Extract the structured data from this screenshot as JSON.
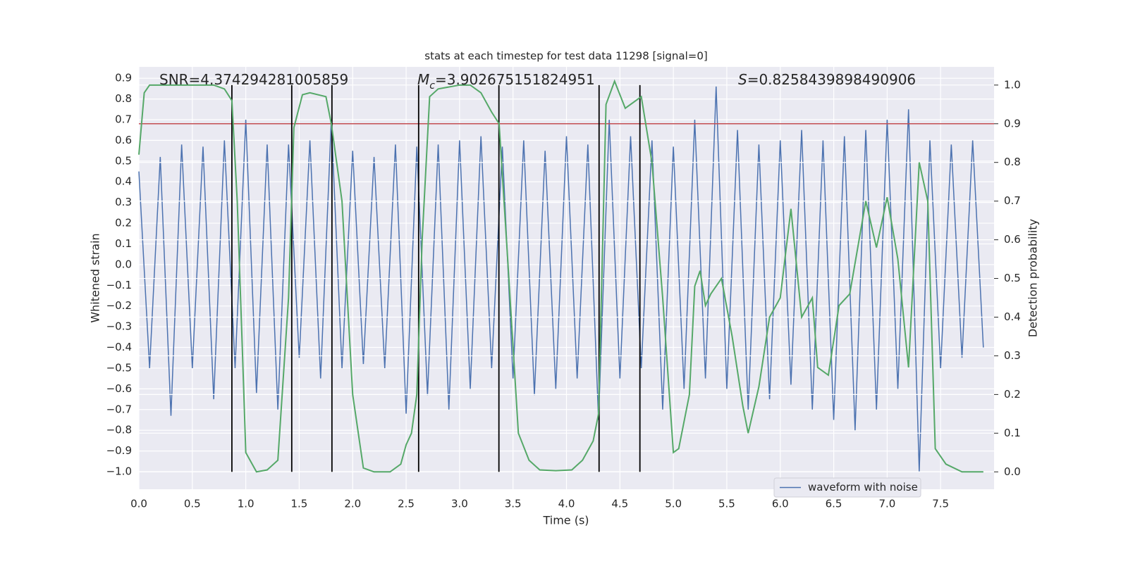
{
  "chart_data": {
    "type": "line",
    "title": "stats at each timestep for test data 11298 [signal=0]",
    "xlabel": "Time (s)",
    "ylabel": "Whitened strain",
    "y2label": "Detection probability",
    "annotations": [
      {
        "text": "SNR=4.374294281005859"
      },
      {
        "symbol": "M",
        "subscript": "c",
        "text": "=3.902675151824951"
      },
      {
        "symbol": "S",
        "text": "=0.8258439898490906"
      }
    ],
    "xlim": [
      0,
      8.0
    ],
    "ylim": [
      -1.085,
      0.955
    ],
    "y2lim": [
      -0.045,
      1.047
    ],
    "xticks": [
      {
        "value": 0,
        "label": "0.0"
      },
      {
        "value": 0.5,
        "label": "0.5"
      },
      {
        "value": 1,
        "label": "1.0"
      },
      {
        "value": 1.5,
        "label": "1.5"
      },
      {
        "value": 2,
        "label": "2.0"
      },
      {
        "value": 2.5,
        "label": "2.5"
      },
      {
        "value": 3,
        "label": "3.0"
      },
      {
        "value": 3.5,
        "label": "3.5"
      },
      {
        "value": 4,
        "label": "4.0"
      },
      {
        "value": 4.5,
        "label": "4.5"
      },
      {
        "value": 5,
        "label": "5.0"
      },
      {
        "value": 5.5,
        "label": "5.5"
      },
      {
        "value": 6,
        "label": "6.0"
      },
      {
        "value": 6.5,
        "label": "6.5"
      },
      {
        "value": 7,
        "label": "7.0"
      },
      {
        "value": 7.5,
        "label": "7.5"
      }
    ],
    "yticks": [
      {
        "value": -1,
        "label": "−1.0"
      },
      {
        "value": -0.9,
        "label": "−0.9"
      },
      {
        "value": -0.8,
        "label": "−0.8"
      },
      {
        "value": -0.7,
        "label": "−0.7"
      },
      {
        "value": -0.6,
        "label": "−0.6"
      },
      {
        "value": -0.5,
        "label": "−0.5"
      },
      {
        "value": -0.4,
        "label": "−0.4"
      },
      {
        "value": -0.3,
        "label": "−0.3"
      },
      {
        "value": -0.2,
        "label": "−0.2"
      },
      {
        "value": -0.1,
        "label": "−0.1"
      },
      {
        "value": 0,
        "label": "0.0"
      },
      {
        "value": 0.1,
        "label": "0.1"
      },
      {
        "value": 0.2,
        "label": "0.2"
      },
      {
        "value": 0.3,
        "label": "0.3"
      },
      {
        "value": 0.4,
        "label": "0.4"
      },
      {
        "value": 0.5,
        "label": "0.5"
      },
      {
        "value": 0.6,
        "label": "0.6"
      },
      {
        "value": 0.7,
        "label": "0.7"
      },
      {
        "value": 0.8,
        "label": "0.8"
      },
      {
        "value": 0.9,
        "label": "0.9"
      }
    ],
    "y2ticks": [
      {
        "value": 0,
        "label": "0.0"
      },
      {
        "value": 0.1,
        "label": "0.1"
      },
      {
        "value": 0.2,
        "label": "0.2"
      },
      {
        "value": 0.3,
        "label": "0.3"
      },
      {
        "value": 0.4,
        "label": "0.4"
      },
      {
        "value": 0.5,
        "label": "0.5"
      },
      {
        "value": 0.6,
        "label": "0.6"
      },
      {
        "value": 0.7,
        "label": "0.7"
      },
      {
        "value": 0.8,
        "label": "0.8"
      },
      {
        "value": 0.9,
        "label": "0.9"
      },
      {
        "value": 1,
        "label": "1.0"
      }
    ],
    "grid": true,
    "legend": "lower right",
    "series": [
      {
        "name": "waveform with noise",
        "color": "#4c72b0",
        "x": [
          0,
          0.1,
          0.2,
          0.3,
          0.4,
          0.5,
          0.6,
          0.7,
          0.8,
          0.9,
          1,
          1.1,
          1.2,
          1.3,
          1.4,
          1.5,
          1.6,
          1.7,
          1.8,
          1.9,
          2,
          2.1,
          2.2,
          2.3,
          2.4,
          2.5,
          2.6,
          2.7,
          2.8,
          2.9,
          3,
          3.1,
          3.2,
          3.3,
          3.4,
          3.5,
          3.6,
          3.7,
          3.8,
          3.9,
          4,
          4.1,
          4.2,
          4.3,
          4.4,
          4.5,
          4.6,
          4.7,
          4.8,
          4.9,
          5,
          5.1,
          5.2,
          5.3,
          5.4,
          5.5,
          5.6,
          5.7,
          5.8,
          5.9,
          6,
          6.1,
          6.2,
          6.3,
          6.4,
          6.5,
          6.6,
          6.7,
          6.8,
          6.9,
          7,
          7.1,
          7.2,
          7.3,
          7.4,
          7.5,
          7.6,
          7.7,
          7.8,
          7.9
        ],
        "values": [
          0.45,
          -0.5,
          0.52,
          -0.73,
          0.58,
          -0.5,
          0.57,
          -0.65,
          0.6,
          -0.5,
          0.7,
          -0.62,
          0.58,
          -0.7,
          0.58,
          -0.45,
          0.6,
          -0.55,
          0.7,
          -0.5,
          0.55,
          -0.48,
          0.52,
          -0.5,
          0.58,
          -0.72,
          0.57,
          -0.63,
          0.58,
          -0.7,
          0.6,
          -0.6,
          0.62,
          -0.5,
          0.57,
          -0.55,
          0.6,
          -0.63,
          0.55,
          -0.6,
          0.62,
          -0.55,
          0.58,
          -0.75,
          0.7,
          -0.55,
          0.62,
          -0.5,
          0.6,
          -0.7,
          0.57,
          -0.6,
          0.7,
          -0.55,
          0.86,
          -0.6,
          0.65,
          -0.7,
          0.58,
          -0.65,
          0.6,
          -0.58,
          0.65,
          -0.7,
          0.6,
          -0.75,
          0.62,
          -0.8,
          0.65,
          -0.7,
          0.7,
          -0.6,
          0.75,
          -1.0,
          0.6,
          -0.5,
          0.58,
          -0.45,
          0.6,
          -0.4
        ]
      }
    ],
    "probability": {
      "color": "#55a868",
      "axis": "y2",
      "x": [
        0,
        0.05,
        0.1,
        0.7,
        0.8,
        0.87,
        0.92,
        0.97,
        1,
        1.1,
        1.2,
        1.3,
        1.4,
        1.45,
        1.53,
        1.6,
        1.75,
        1.8,
        1.9,
        2,
        2.1,
        2.2,
        2.35,
        2.45,
        2.5,
        2.55,
        2.6,
        2.65,
        2.72,
        2.8,
        3,
        3.1,
        3.2,
        3.3,
        3.37,
        3.45,
        3.55,
        3.65,
        3.75,
        3.9,
        4.05,
        4.15,
        4.25,
        4.3,
        4.37,
        4.45,
        4.55,
        4.7,
        4.8,
        4.9,
        5,
        5.05,
        5.15,
        5.2,
        5.25,
        5.3,
        5.35,
        5.45,
        5.55,
        5.65,
        5.7,
        5.8,
        5.9,
        6,
        6.1,
        6.2,
        6.3,
        6.35,
        6.45,
        6.55,
        6.65,
        6.8,
        6.9,
        7,
        7.1,
        7.2,
        7.3,
        7.38,
        7.45,
        7.55,
        7.7,
        7.9
      ],
      "values": [
        0.82,
        0.98,
        1,
        1,
        0.99,
        0.96,
        0.7,
        0.3,
        0.05,
        0,
        0.005,
        0.03,
        0.45,
        0.89,
        0.975,
        0.98,
        0.97,
        0.9,
        0.7,
        0.2,
        0.01,
        0,
        0,
        0.02,
        0.07,
        0.1,
        0.2,
        0.6,
        0.97,
        0.99,
        1,
        1,
        0.98,
        0.93,
        0.9,
        0.55,
        0.1,
        0.03,
        0.005,
        0.003,
        0.005,
        0.03,
        0.08,
        0.15,
        0.95,
        1.01,
        0.94,
        0.97,
        0.8,
        0.45,
        0.05,
        0.06,
        0.2,
        0.48,
        0.52,
        0.43,
        0.46,
        0.5,
        0.35,
        0.17,
        0.1,
        0.22,
        0.4,
        0.45,
        0.68,
        0.4,
        0.45,
        0.27,
        0.25,
        0.43,
        0.46,
        0.7,
        0.58,
        0.71,
        0.55,
        0.27,
        0.8,
        0.7,
        0.06,
        0.02,
        0,
        0
      ]
    },
    "threshold": {
      "color": "#c44e52",
      "axis": "y2",
      "y": 0.9
    },
    "vlines": {
      "color": "#000000",
      "x": [
        0.87,
        1.43,
        1.806,
        2.617,
        3.368,
        4.305,
        4.687
      ],
      "ymin": 0,
      "ymax": 1,
      "axis": "y2"
    }
  }
}
